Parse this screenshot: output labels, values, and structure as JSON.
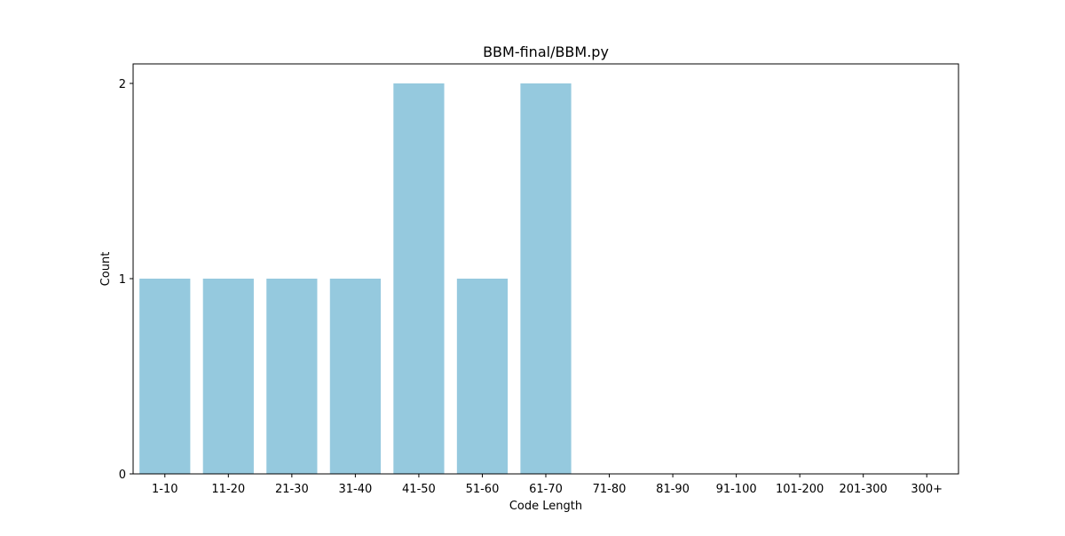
{
  "chart_data": {
    "type": "bar",
    "title": "BBM-final/BBM.py",
    "xlabel": "Code Length",
    "ylabel": "Count",
    "categories": [
      "1-10",
      "11-20",
      "21-30",
      "31-40",
      "41-50",
      "51-60",
      "61-70",
      "71-80",
      "81-90",
      "91-100",
      "101-200",
      "201-300",
      "300+"
    ],
    "values": [
      1,
      1,
      1,
      1,
      2,
      1,
      2,
      0,
      0,
      0,
      0,
      0,
      0
    ],
    "ylim": [
      0,
      2.1
    ],
    "yticks": [
      "0",
      "1",
      "2"
    ],
    "grid": false,
    "legend": "none",
    "bar_color": "#95c9de"
  }
}
